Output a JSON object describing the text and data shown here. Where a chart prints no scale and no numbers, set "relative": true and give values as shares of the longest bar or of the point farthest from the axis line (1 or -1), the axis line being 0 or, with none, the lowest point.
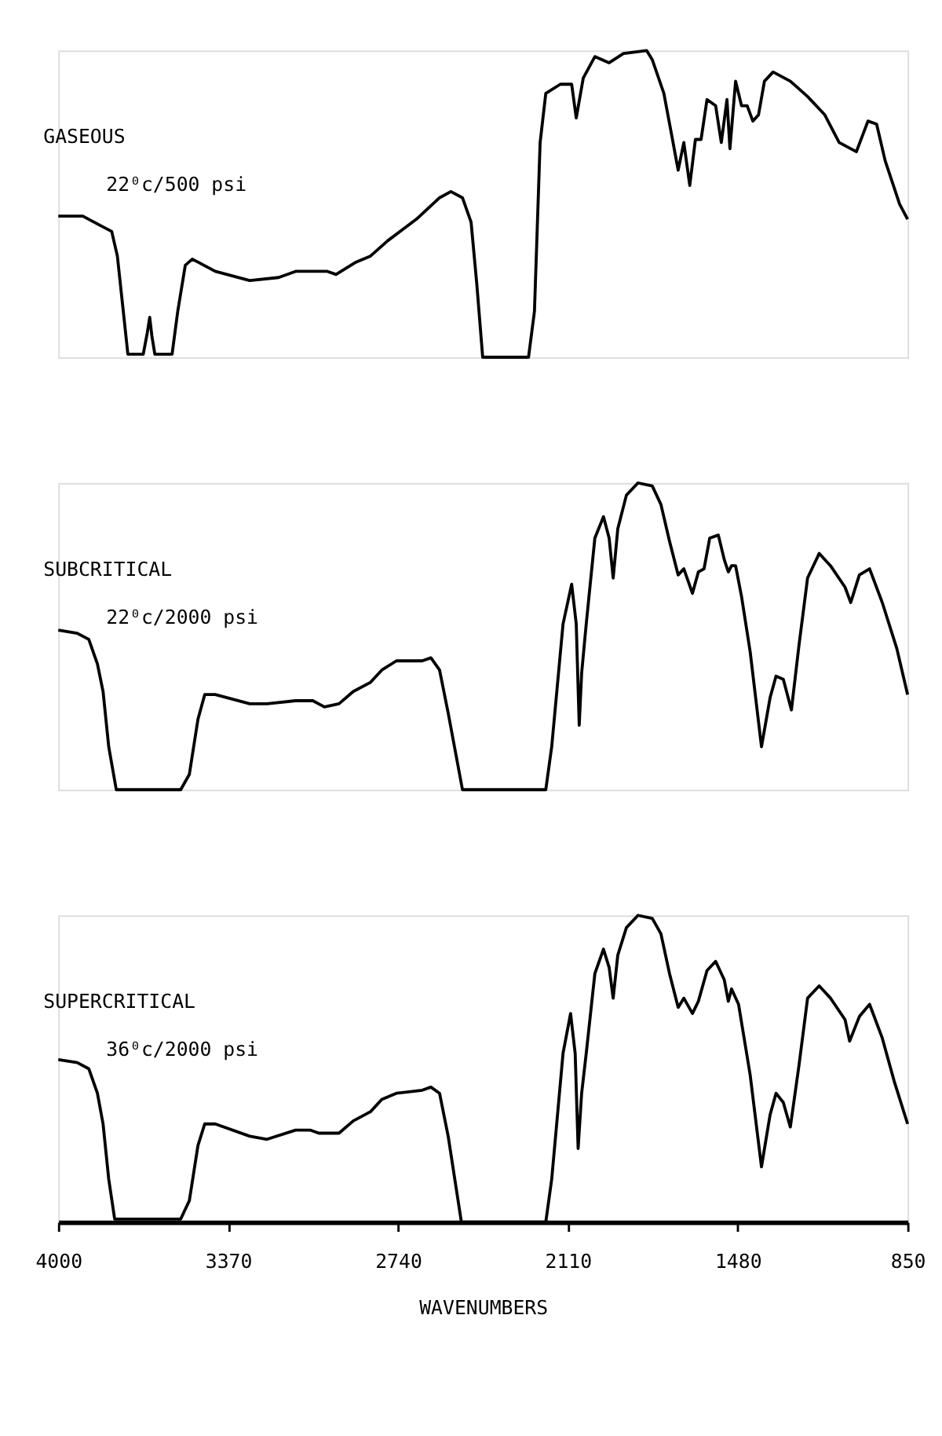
{
  "chart_data": [
    {
      "type": "line",
      "relative": true,
      "xlim": [
        4000,
        850
      ],
      "tick_labels": false,
      "annotations": [
        "22⁰c/500 psi"
      ],
      "series": [
        {
          "name": "GASEOUS",
          "color": "#000000",
          "x": [
            4000,
            3909,
            3845,
            3802,
            3781,
            3759,
            3742,
            3685,
            3670,
            3661,
            3653,
            3642,
            3578,
            3557,
            3529,
            3503,
            3418,
            3290,
            3183,
            3120,
            3002,
            2970,
            2896,
            2842,
            2778,
            2672,
            2586,
            2544,
            2501,
            2469,
            2448,
            2426,
            2256,
            2234,
            2213,
            2192,
            2138,
            2096,
            2079,
            2053,
            2010,
            1957,
            1904,
            1818,
            1797,
            1754,
            1722,
            1701,
            1680,
            1658,
            1637,
            1616,
            1594,
            1562,
            1541,
            1520,
            1509,
            1488,
            1466,
            1445,
            1424,
            1403,
            1381,
            1349,
            1285,
            1221,
            1157,
            1104,
            1040,
            997,
            965,
            933,
            880,
            850
          ],
          "values": [
            0.46,
            0.46,
            0.43,
            0.41,
            0.33,
            0.15,
            0.01,
            0.01,
            0.08,
            0.13,
            0.07,
            0.01,
            0.01,
            0.15,
            0.3,
            0.32,
            0.28,
            0.25,
            0.26,
            0.28,
            0.28,
            0.27,
            0.31,
            0.33,
            0.38,
            0.45,
            0.52,
            0.54,
            0.52,
            0.44,
            0.24,
            0,
            0,
            0.15,
            0.7,
            0.86,
            0.89,
            0.89,
            0.78,
            0.91,
            0.98,
            0.96,
            0.99,
            1,
            0.97,
            0.86,
            0.71,
            0.61,
            0.7,
            0.56,
            0.71,
            0.71,
            0.84,
            0.82,
            0.7,
            0.84,
            0.68,
            0.9,
            0.82,
            0.82,
            0.77,
            0.79,
            0.9,
            0.93,
            0.9,
            0.85,
            0.79,
            0.7,
            0.67,
            0.77,
            0.76,
            0.64,
            0.5,
            0.45
          ]
        }
      ]
    },
    {
      "type": "line",
      "relative": true,
      "xlim": [
        4000,
        850
      ],
      "tick_labels": false,
      "annotations": [
        "22⁰c/2000 psi"
      ],
      "series": [
        {
          "name": "SUBCRITICAL",
          "color": "#000000",
          "x": [
            4000,
            3930,
            3887,
            3855,
            3834,
            3813,
            3785,
            3546,
            3514,
            3482,
            3457,
            3418,
            3290,
            3226,
            3120,
            3056,
            3013,
            2959,
            2906,
            2842,
            2800,
            2746,
            2650,
            2618,
            2586,
            2554,
            2501,
            2192,
            2170,
            2128,
            2096,
            2079,
            2068,
            2059,
            2042,
            2010,
            1978,
            1957,
            1942,
            1925,
            1893,
            1850,
            1797,
            1765,
            1733,
            1701,
            1680,
            1648,
            1626,
            1605,
            1584,
            1552,
            1530,
            1515,
            1503,
            1488,
            1466,
            1434,
            1392,
            1360,
            1338,
            1311,
            1281,
            1253,
            1221,
            1178,
            1136,
            1082,
            1061,
            1029,
            991,
            944,
            890,
            850
          ],
          "values": [
            0.52,
            0.51,
            0.49,
            0.41,
            0.32,
            0.14,
            0,
            0,
            0.05,
            0.23,
            0.31,
            0.31,
            0.28,
            0.28,
            0.29,
            0.29,
            0.27,
            0.28,
            0.32,
            0.35,
            0.39,
            0.42,
            0.42,
            0.43,
            0.39,
            0.25,
            0,
            0,
            0.14,
            0.54,
            0.67,
            0.54,
            0.21,
            0.38,
            0.54,
            0.82,
            0.89,
            0.82,
            0.69,
            0.85,
            0.96,
            1,
            0.99,
            0.93,
            0.81,
            0.7,
            0.72,
            0.64,
            0.71,
            0.72,
            0.82,
            0.83,
            0.75,
            0.71,
            0.73,
            0.73,
            0.63,
            0.45,
            0.14,
            0.3,
            0.37,
            0.36,
            0.26,
            0.47,
            0.69,
            0.77,
            0.73,
            0.66,
            0.61,
            0.7,
            0.72,
            0.61,
            0.46,
            0.31
          ]
        }
      ]
    },
    {
      "type": "line",
      "relative": true,
      "xlim": [
        4000,
        850
      ],
      "xticks": [
        4000,
        3370,
        2740,
        2110,
        1480,
        850
      ],
      "xlabel": "WAVENUMBERS",
      "tick_labels": "x",
      "annotations": [
        "36⁰c/2000 psi"
      ],
      "series": [
        {
          "name": "SUPERCRITICAL",
          "color": "#000000",
          "x": [
            4000,
            3930,
            3887,
            3855,
            3834,
            3813,
            3791,
            3546,
            3514,
            3482,
            3457,
            3418,
            3290,
            3226,
            3120,
            3066,
            3034,
            2959,
            2906,
            2842,
            2800,
            2746,
            2650,
            2618,
            2586,
            2554,
            2505,
            2192,
            2170,
            2128,
            2100,
            2083,
            2072,
            2059,
            2042,
            2010,
            1978,
            1957,
            1942,
            1925,
            1893,
            1850,
            1797,
            1765,
            1733,
            1701,
            1680,
            1648,
            1626,
            1594,
            1562,
            1530,
            1515,
            1503,
            1477,
            1434,
            1392,
            1360,
            1338,
            1311,
            1285,
            1253,
            1221,
            1178,
            1136,
            1082,
            1065,
            1029,
            991,
            944,
            900,
            850
          ],
          "values": [
            0.53,
            0.52,
            0.5,
            0.42,
            0.32,
            0.14,
            0.01,
            0.01,
            0.07,
            0.25,
            0.32,
            0.32,
            0.28,
            0.27,
            0.3,
            0.3,
            0.29,
            0.29,
            0.33,
            0.36,
            0.4,
            0.42,
            0.43,
            0.44,
            0.42,
            0.28,
            0,
            0,
            0.14,
            0.55,
            0.68,
            0.55,
            0.24,
            0.42,
            0.55,
            0.81,
            0.89,
            0.83,
            0.73,
            0.87,
            0.96,
            1,
            0.99,
            0.94,
            0.81,
            0.7,
            0.73,
            0.68,
            0.72,
            0.82,
            0.85,
            0.79,
            0.72,
            0.76,
            0.71,
            0.48,
            0.18,
            0.35,
            0.42,
            0.39,
            0.31,
            0.51,
            0.73,
            0.77,
            0.73,
            0.66,
            0.59,
            0.67,
            0.71,
            0.6,
            0.46,
            0.32
          ]
        }
      ]
    }
  ]
}
